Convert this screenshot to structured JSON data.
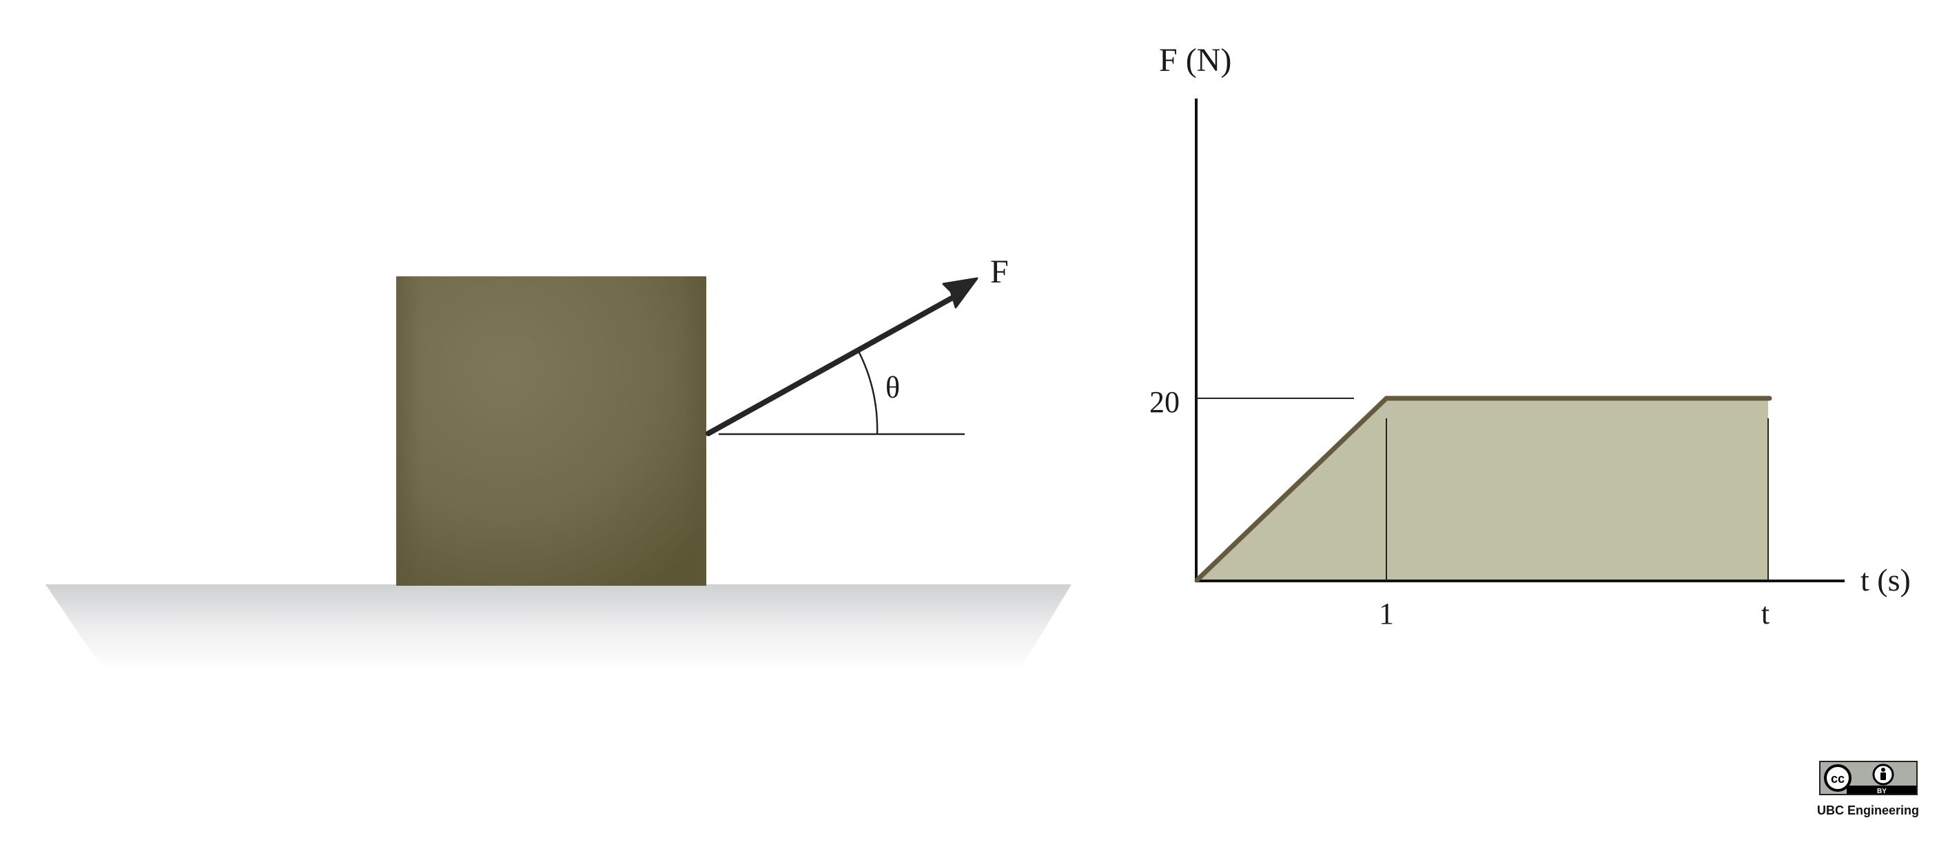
{
  "left_diagram": {
    "force_label": "F",
    "angle_label": "θ"
  },
  "graph": {
    "y_axis_label": "F (N)",
    "x_axis_label": "t (s)",
    "y_tick_label": "20",
    "x_tick_labels": [
      "1",
      "t"
    ]
  },
  "chart_data": {
    "type": "area",
    "x": [
      "0",
      "1",
      "t"
    ],
    "y": [
      0,
      20,
      20
    ],
    "ylabel": "F (N)",
    "xlabel": "t (s)",
    "grid": false,
    "legend": "none"
  },
  "license": {
    "badge_cc": "cc",
    "badge_by": "BY",
    "credit": "UBC Engineering",
    "badge_icons": [
      "creative-commons-icon",
      "attribution-person-icon"
    ]
  },
  "colors": {
    "block": "#7a7355",
    "block_dark": "#5f5a3a",
    "fill": "#bfc0a6",
    "curve": "#645a3f",
    "ink": "#1a1a1a"
  }
}
